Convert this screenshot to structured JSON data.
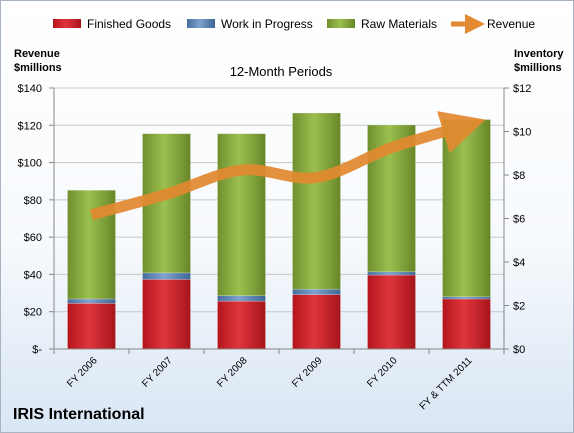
{
  "chart_data": {
    "type": "bar",
    "title": "12-Month Periods",
    "subtitle": "IRIS International",
    "ylabel_left": [
      "Revenue",
      "$millions"
    ],
    "ylabel_right": [
      "Inventory",
      "$millions"
    ],
    "categories": [
      "FY 2006",
      "FY 2007",
      "FY 2008",
      "FY 2009",
      "FY 2010",
      "FY & TTM 2011"
    ],
    "stacked": true,
    "series": [
      {
        "name": "Finished Goods",
        "axis": "right",
        "color": "#d0202a",
        "values": [
          2.1,
          3.2,
          2.2,
          2.5,
          3.4,
          2.3
        ]
      },
      {
        "name": "Work in Progress",
        "axis": "right",
        "color": "#4f81bd",
        "values": [
          0.2,
          0.3,
          0.25,
          0.25,
          0.15,
          0.1
        ]
      },
      {
        "name": "Raw Materials",
        "axis": "right",
        "color": "#8db041",
        "values": [
          5.0,
          6.4,
          7.45,
          8.1,
          6.75,
          8.15
        ]
      },
      {
        "name": "Revenue",
        "axis": "left",
        "type": "line",
        "color": "#e3892f",
        "values": [
          72,
          83,
          96,
          92,
          108,
          120
        ]
      }
    ],
    "ylim_left": [
      0,
      140
    ],
    "ylim_right": [
      0,
      12
    ],
    "yticks_left": [
      "$-",
      "$20",
      "$40",
      "$60",
      "$80",
      "$100",
      "$120",
      "$140"
    ],
    "yticks_right": [
      "$0",
      "$2",
      "$4",
      "$6",
      "$8",
      "$10",
      "$12"
    ],
    "grid": true,
    "legend": "top"
  }
}
